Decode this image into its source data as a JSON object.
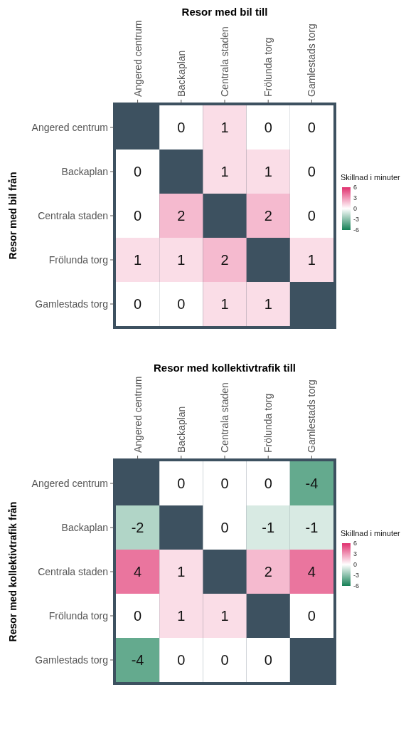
{
  "chart_data": [
    {
      "type": "heatmap",
      "title": "Resor med bil till",
      "ylabel": "Resor med bil från",
      "categories": [
        "Angered centrum",
        "Backaplan",
        "Centrala staden",
        "Frölunda torg",
        "Gamlestads torg"
      ],
      "y_categories": [
        "Angered centrum",
        "Backaplan",
        "Centrala staden",
        "Frölunda torg",
        "Gamlestads torg"
      ],
      "cells": [
        [
          null,
          0,
          1,
          0,
          0
        ],
        [
          0,
          null,
          1,
          1,
          0
        ],
        [
          0,
          2,
          null,
          2,
          0
        ],
        [
          1,
          1,
          2,
          null,
          1
        ],
        [
          0,
          0,
          1,
          1,
          null
        ]
      ],
      "data_labels": true,
      "clabel": "Skillnad i minuter",
      "clim": [
        -6,
        6
      ],
      "cticks": [
        -6,
        -3,
        0,
        3,
        6
      ]
    },
    {
      "type": "heatmap",
      "title": "Resor med kollektivtrafik till",
      "ylabel": "Resor med kollektivtrafik från",
      "categories": [
        "Angered centrum",
        "Backaplan",
        "Centrala staden",
        "Frölunda torg",
        "Gamlestads torg"
      ],
      "y_categories": [
        "Angered centrum",
        "Backaplan",
        "Centrala staden",
        "Frölunda torg",
        "Gamlestads torg"
      ],
      "cells": [
        [
          null,
          0,
          0,
          0,
          -4
        ],
        [
          -2,
          null,
          0,
          -1,
          -1
        ],
        [
          4,
          1,
          null,
          2,
          4
        ],
        [
          0,
          1,
          1,
          null,
          0
        ],
        [
          -4,
          0,
          0,
          0,
          null
        ]
      ],
      "data_labels": true,
      "clabel": "Skillnad i minuter",
      "clim": [
        -6,
        6
      ],
      "cticks": [
        -6,
        -3,
        0,
        3,
        6
      ]
    }
  ]
}
